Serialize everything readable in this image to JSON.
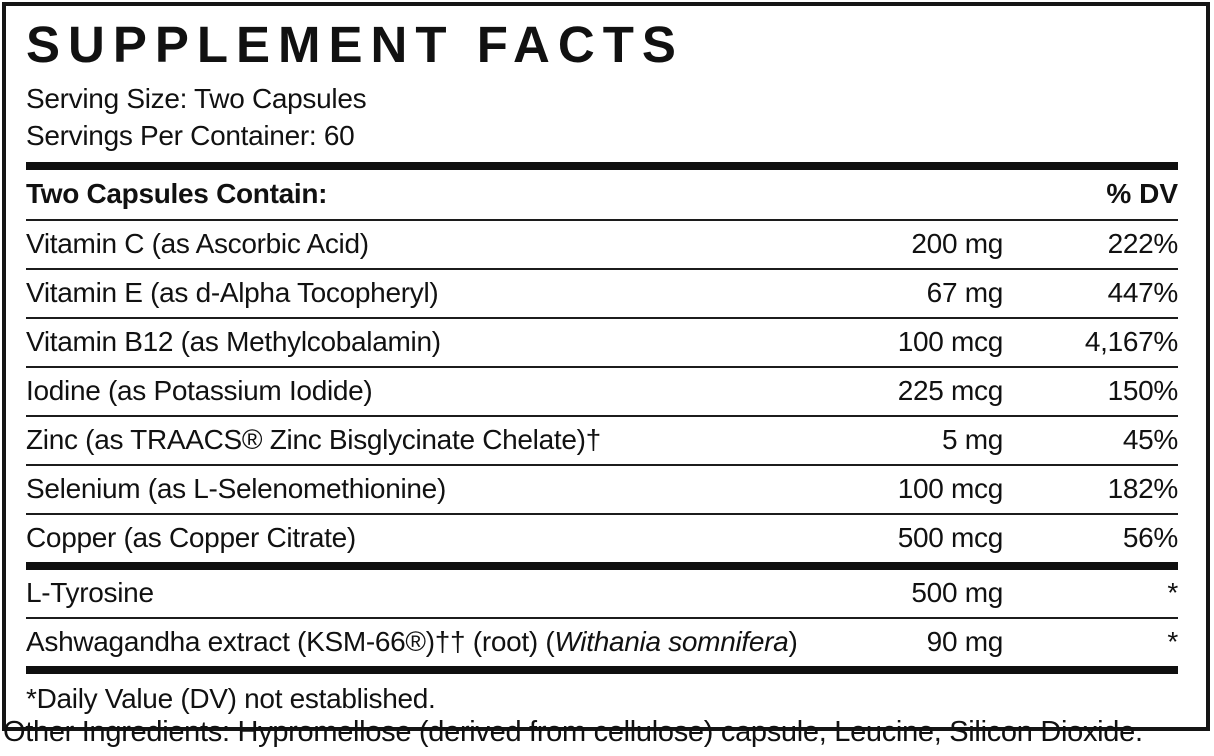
{
  "label": {
    "title": "SUPPLEMENT FACTS",
    "serving_size": "Serving Size: Two Capsules",
    "servings_per_container": "Servings Per Container: 60",
    "table_header": {
      "left": "Two Capsules Contain:",
      "right": "% DV"
    },
    "nutrients": [
      {
        "name": "Vitamin C (as Ascorbic Acid)",
        "amount": "200 mg",
        "dv": "222%"
      },
      {
        "name": "Vitamin E (as d-Alpha Tocopheryl)",
        "amount": "67 mg",
        "dv": "447%"
      },
      {
        "name": "Vitamin B12 (as Methylcobalamin)",
        "amount": "100 mcg",
        "dv": "4,167%"
      },
      {
        "name": "Iodine (as Potassium Iodide)",
        "amount": "225 mcg",
        "dv": "150%"
      },
      {
        "name": "Zinc (as TRAACS® Zinc Bisglycinate Chelate)†",
        "amount": "5 mg",
        "dv": "45%"
      },
      {
        "name": "Selenium (as L-Selenomethionine)",
        "amount": "100 mcg",
        "dv": "182%"
      },
      {
        "name": "Copper (as Copper Citrate)",
        "amount": "500 mcg",
        "dv": "56%"
      }
    ],
    "other_actives": [
      {
        "name": "L-Tyrosine",
        "amount": "500 mg",
        "dv": "*"
      },
      {
        "name_prefix": "Ashwagandha extract (KSM-66®)†† (root) (",
        "name_italic": "Withania somnifera",
        "name_suffix": ")",
        "amount": "90 mg",
        "dv": "*"
      }
    ],
    "footnote": "*Daily Value (DV) not established.",
    "colors": {
      "ink": "#111111",
      "rule": "#1c1c1c",
      "bar": "#0f0f0f",
      "background": "#ffffff"
    }
  },
  "other_ingredients": "Other Ingredients: Hypromellose (derived from cellulose) capsule, Leucine, Silicon Dioxide."
}
